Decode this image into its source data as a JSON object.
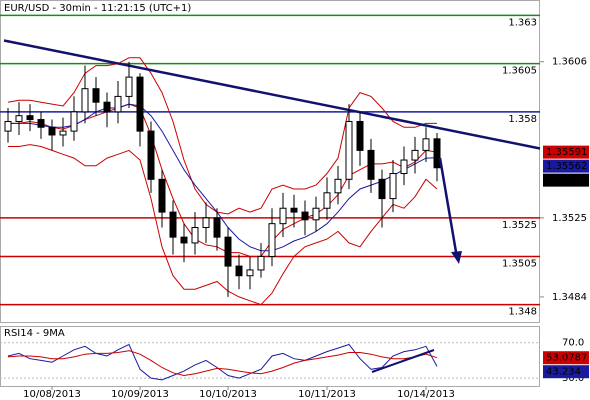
{
  "chart_data": {
    "type": "candlestick",
    "title": "EUR/USD - 30min - 11:21:15 (UTC+1)",
    "categories": [
      null,
      null,
      null,
      null,
      "10/08/2013",
      null,
      null,
      null,
      null,
      null,
      null,
      null,
      "10/09/2013",
      null,
      null,
      null,
      null,
      null,
      null,
      null,
      "10/10/2013",
      null,
      null,
      null,
      null,
      null,
      null,
      null,
      null,
      "10/11/2013",
      null,
      null,
      null,
      null,
      null,
      null,
      null,
      null,
      "10/14/2013",
      null
    ],
    "open": [
      1.357,
      1.3575,
      1.3578,
      1.3576,
      1.3572,
      1.3568,
      1.357,
      1.358,
      1.3592,
      1.3585,
      1.358,
      1.3588,
      1.3598,
      1.357,
      1.3545,
      1.3528,
      1.3515,
      1.3512,
      1.352,
      1.3525,
      1.3515,
      1.35,
      1.3495,
      1.3498,
      1.3505,
      1.3522,
      1.353,
      1.3528,
      1.3524,
      1.353,
      1.3538,
      1.3545,
      1.3575,
      1.356,
      1.3545,
      1.3535,
      1.3548,
      1.3555,
      1.356,
      1.3566
    ],
    "high": [
      1.3582,
      1.3585,
      1.3584,
      1.358,
      1.3576,
      1.3577,
      1.3588,
      1.3604,
      1.3598,
      1.359,
      1.3596,
      1.3606,
      1.36,
      1.3575,
      1.355,
      1.3534,
      1.3522,
      1.3528,
      1.3533,
      1.353,
      1.352,
      1.3506,
      1.3505,
      1.3512,
      1.353,
      1.3538,
      1.3537,
      1.3534,
      1.3536,
      1.3546,
      1.3552,
      1.3584,
      1.358,
      1.3566,
      1.355,
      1.3555,
      1.3562,
      1.3567,
      1.3572,
      1.3569
    ],
    "low": [
      1.3564,
      1.3568,
      1.357,
      1.3566,
      1.356,
      1.3562,
      1.3565,
      1.3574,
      1.3578,
      1.3572,
      1.3574,
      1.3582,
      1.3562,
      1.3538,
      1.352,
      1.3506,
      1.3502,
      1.3506,
      1.3512,
      1.3508,
      1.3484,
      1.3488,
      1.3488,
      1.3494,
      1.35,
      1.3515,
      1.352,
      1.3516,
      1.3518,
      1.3524,
      1.3532,
      1.354,
      1.3552,
      1.3538,
      1.352,
      1.3528,
      1.3542,
      1.3548,
      1.3554,
      1.3544
    ],
    "close": [
      1.3575,
      1.3578,
      1.3576,
      1.3572,
      1.3568,
      1.357,
      1.358,
      1.3592,
      1.3585,
      1.358,
      1.3588,
      1.3598,
      1.357,
      1.3545,
      1.3528,
      1.3515,
      1.3512,
      1.352,
      1.3525,
      1.3515,
      1.35,
      1.3495,
      1.3498,
      1.3505,
      1.3522,
      1.353,
      1.3528,
      1.3524,
      1.353,
      1.3538,
      1.3545,
      1.3575,
      1.356,
      1.3545,
      1.3535,
      1.3548,
      1.3555,
      1.356,
      1.3566,
      1.3551
    ],
    "candle_color": "#000000",
    "close_label_color": "#000000",
    "series": [
      {
        "color": "#cc0000",
        "values": [
          1.3585,
          1.3586,
          1.3586,
          1.3585,
          1.3584,
          1.3583,
          1.359,
          1.36,
          1.3604,
          1.3604,
          1.3605,
          1.3608,
          1.3608,
          1.36,
          1.359,
          1.3575,
          1.3555,
          1.354,
          1.3532,
          1.3528,
          1.3527,
          1.353,
          1.3528,
          1.353,
          1.354,
          1.3542,
          1.354,
          1.354,
          1.3542,
          1.3548,
          1.3556,
          1.3582,
          1.359,
          1.3588,
          1.3582,
          1.3575,
          1.3572,
          1.3572,
          1.3574,
          1.3574
        ]
      },
      {
        "color": "#cc0000",
        "values": [
          1.3562,
          1.3562,
          1.3563,
          1.3562,
          1.356,
          1.3558,
          1.3556,
          1.3552,
          1.3552,
          1.3556,
          1.3558,
          1.356,
          1.3555,
          1.3535,
          1.351,
          1.3495,
          1.3488,
          1.3488,
          1.349,
          1.3492,
          1.3487,
          1.3484,
          1.3482,
          1.348,
          1.3486,
          1.3496,
          1.3505,
          1.351,
          1.3512,
          1.3514,
          1.3518,
          1.3512,
          1.351,
          1.3518,
          1.3525,
          1.3532,
          1.353,
          1.3536,
          1.3545,
          1.354
        ]
      },
      {
        "color": "#cc0000",
        "label_box": true,
        "values": [
          1.3574,
          1.3574,
          1.3575,
          1.3574,
          1.3572,
          1.3571,
          1.3573,
          1.3576,
          1.3578,
          1.358,
          1.3582,
          1.3584,
          1.3582,
          1.3568,
          1.355,
          1.3535,
          1.3522,
          1.3514,
          1.3511,
          1.351,
          1.3507,
          1.3507,
          1.3505,
          1.3505,
          1.3513,
          1.3519,
          1.3522,
          1.3525,
          1.3527,
          1.3531,
          1.3537,
          1.3547,
          1.355,
          1.3553,
          1.3553,
          1.3554,
          1.3551,
          1.3554,
          1.356,
          1.35591
        ]
      },
      {
        "color": "#1a1aa0",
        "label_box": true,
        "values": [
          1.3574,
          1.3574,
          1.3574,
          1.3573,
          1.3572,
          1.3572,
          1.3573,
          1.3576,
          1.358,
          1.3582,
          1.3582,
          1.3584,
          1.3583,
          1.3578,
          1.357,
          1.356,
          1.355,
          1.3542,
          1.3535,
          1.3528,
          1.352,
          1.3514,
          1.351,
          1.3508,
          1.3508,
          1.351,
          1.3513,
          1.3515,
          1.3518,
          1.3522,
          1.3528,
          1.3535,
          1.354,
          1.3542,
          1.3544,
          1.3547,
          1.355,
          1.3553,
          1.3556,
          1.35562
        ]
      }
    ],
    "ylim": [
      1.3471,
      1.3638
    ],
    "yticks": [
      1.3606,
      1.3525,
      1.3484
    ],
    "levels": [
      {
        "value": 1.363,
        "color": "#1a8a1a"
      },
      {
        "value": 1.3605,
        "color": "#1a8a1a"
      },
      {
        "value": 1.358,
        "color": "#1a1aa0"
      },
      {
        "value": 1.3525,
        "color": "#cc0000"
      },
      {
        "value": 1.3505,
        "color": "#cc0000"
      },
      {
        "value": 1.348,
        "color": "#cc0000"
      }
    ],
    "trendline": {
      "color": "#12126e",
      "start": 1.3617,
      "end": 1.3561
    },
    "rsi": {
      "title": "RSI14 - 9MA",
      "ylim": [
        21.1,
        87.8
      ],
      "yticks": [
        {
          "value": 70,
          "label": "70.0"
        },
        {
          "value": 30,
          "label": "30.0"
        }
      ],
      "series": [
        {
          "color": "#1a1aa0",
          "values": [
            55,
            58,
            52,
            50,
            48,
            55,
            62,
            66,
            58,
            55,
            62,
            68,
            40,
            30,
            28,
            33,
            38,
            45,
            50,
            42,
            33,
            30,
            35,
            40,
            55,
            58,
            52,
            50,
            55,
            60,
            64,
            68,
            52,
            40,
            42,
            55,
            60,
            62,
            66,
            43.234
          ]
        },
        {
          "color": "#cc0000",
          "values": [
            54,
            55,
            55,
            54,
            52,
            52,
            54,
            57,
            58,
            58,
            59,
            61,
            57,
            50,
            42,
            36,
            33,
            35,
            38,
            41,
            40,
            38,
            36,
            35,
            38,
            42,
            47,
            50,
            52,
            54,
            56,
            59,
            59,
            57,
            54,
            52,
            52,
            54,
            57,
            53.0787
          ]
        }
      ]
    }
  }
}
